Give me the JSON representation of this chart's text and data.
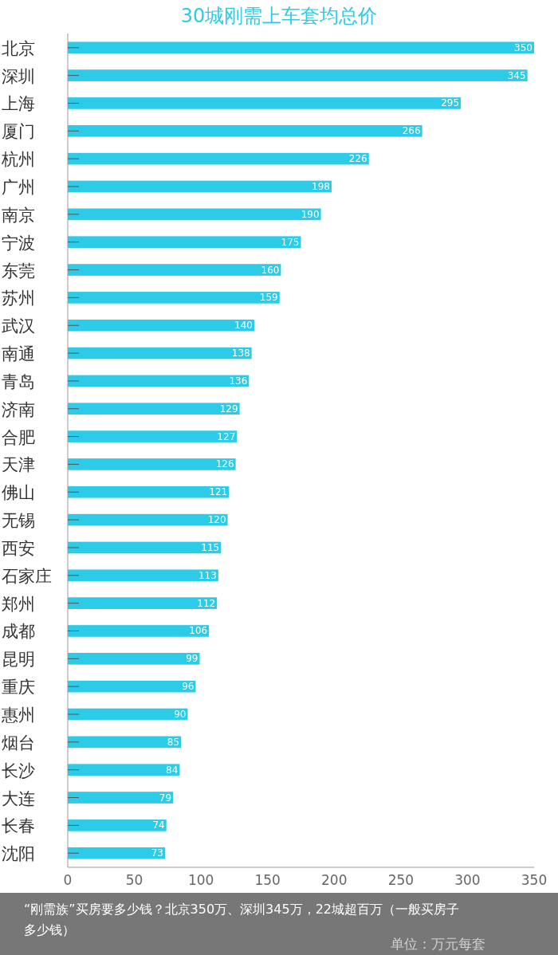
{
  "chart_data": {
    "type": "bar",
    "orientation": "horizontal",
    "title": "30城刚需上车套均总价",
    "categories": [
      "北京",
      "深圳",
      "上海",
      "厦门",
      "杭州",
      "广州",
      "南京",
      "宁波",
      "东莞",
      "苏州",
      "武汉",
      "南通",
      "青岛",
      "济南",
      "合肥",
      "天津",
      "佛山",
      "无锡",
      "西安",
      "石家庄",
      "郑州",
      "成都",
      "昆明",
      "重庆",
      "惠州",
      "烟台",
      "长沙",
      "大连",
      "长春",
      "沈阳"
    ],
    "values": [
      350,
      345,
      295,
      266,
      226,
      198,
      190,
      175,
      160,
      159,
      140,
      138,
      136,
      129,
      127,
      126,
      121,
      120,
      115,
      113,
      112,
      106,
      99,
      96,
      90,
      85,
      84,
      79,
      74,
      73
    ],
    "color": "#2ccbe8",
    "xlim": [
      0,
      350
    ],
    "xticks": [
      0,
      50,
      100,
      150,
      200,
      250,
      300,
      350
    ],
    "data_labels": true,
    "grid": false,
    "annotations": [
      "“刚需族”买房要多少钱？北京350万、深圳345万，22城超百万（一般买房子多少钱）",
      "单位：万元每套"
    ]
  }
}
